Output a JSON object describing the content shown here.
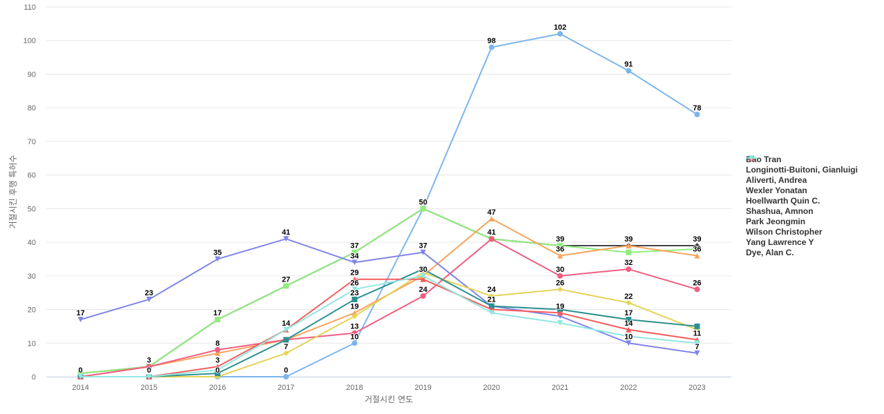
{
  "chart_data": {
    "type": "line",
    "title": "",
    "xlabel": "거절시킨 연도",
    "ylabel": "거절시킨 후행 특허수",
    "x": [
      2014,
      2015,
      2016,
      2017,
      2018,
      2019,
      2020,
      2021,
      2022,
      2023
    ],
    "ylim": [
      0,
      110
    ],
    "yticks": [
      0,
      10,
      20,
      30,
      40,
      50,
      60,
      70,
      80,
      90,
      100,
      110
    ],
    "grid": true,
    "legend_position": "right",
    "series": [
      {
        "name": "Bao Tran",
        "color": "#7cb5ec",
        "marker": "circle",
        "values": [
          0,
          0,
          0,
          0,
          10,
          50,
          98,
          102,
          91,
          78
        ],
        "labels": [
          false,
          false,
          false,
          true,
          true,
          true,
          true,
          true,
          true,
          true
        ]
      },
      {
        "name": "Longinotti-Buitoni, Gianluigi",
        "color": "#434348",
        "marker": "diamond",
        "values": [
          1,
          3,
          17,
          27,
          37,
          50,
          41,
          39,
          39,
          39
        ],
        "labels": [
          false,
          false,
          false,
          false,
          false,
          false,
          false,
          true,
          true,
          true
        ]
      },
      {
        "name": "Aliverti, Andrea",
        "color": "#90ed7d",
        "marker": "square",
        "values": [
          1,
          3,
          17,
          27,
          37,
          50,
          41,
          39,
          37,
          38
        ],
        "labels": [
          false,
          true,
          true,
          true,
          true,
          true,
          false,
          false,
          false,
          false
        ]
      },
      {
        "name": "Wexler Yonatan",
        "color": "#f7a35c",
        "marker": "triangle",
        "values": [
          0,
          3,
          7,
          11,
          19,
          30,
          47,
          36,
          39,
          36
        ],
        "labels": [
          false,
          false,
          false,
          false,
          true,
          true,
          true,
          true,
          false,
          true
        ]
      },
      {
        "name": "Hoellwarth Quin C.",
        "color": "#8085e9",
        "marker": "triangle-down",
        "values": [
          17,
          23,
          35,
          41,
          34,
          37,
          21,
          18,
          10,
          7
        ],
        "labels": [
          true,
          true,
          true,
          true,
          true,
          true,
          true,
          false,
          true,
          true
        ]
      },
      {
        "name": "Shashua, Amnon",
        "color": "#f15c80",
        "marker": "circle",
        "values": [
          0,
          3,
          8,
          11,
          13,
          24,
          41,
          30,
          32,
          26
        ],
        "labels": [
          false,
          false,
          true,
          false,
          true,
          true,
          true,
          true,
          true,
          true
        ]
      },
      {
        "name": "Park Jeongmin",
        "color": "#e4d354",
        "marker": "diamond",
        "values": [
          0,
          0,
          0,
          7,
          18,
          31,
          24,
          26,
          22,
          14
        ],
        "labels": [
          true,
          false,
          true,
          true,
          false,
          false,
          true,
          true,
          true,
          false
        ]
      },
      {
        "name": "Wilson Christopher",
        "color": "#2b908f",
        "marker": "square",
        "values": [
          0,
          0,
          1,
          11,
          23,
          32,
          21,
          20,
          17,
          15
        ],
        "labels": [
          false,
          true,
          false,
          false,
          true,
          false,
          false,
          false,
          true,
          false
        ]
      },
      {
        "name": "Yang Lawrence Y",
        "color": "#f45b5b",
        "marker": "triangle",
        "values": [
          0,
          0,
          3,
          14,
          29,
          29,
          20,
          19,
          14,
          11
        ],
        "labels": [
          false,
          false,
          true,
          true,
          true,
          false,
          false,
          true,
          true,
          true
        ]
      },
      {
        "name": "Dye, Alan C.",
        "color": "#91e8e1",
        "marker": "triangle-down",
        "values": [
          0,
          0,
          2,
          14,
          26,
          30,
          19,
          16,
          12,
          10
        ],
        "labels": [
          false,
          false,
          false,
          false,
          true,
          false,
          false,
          false,
          false,
          false
        ]
      }
    ]
  }
}
